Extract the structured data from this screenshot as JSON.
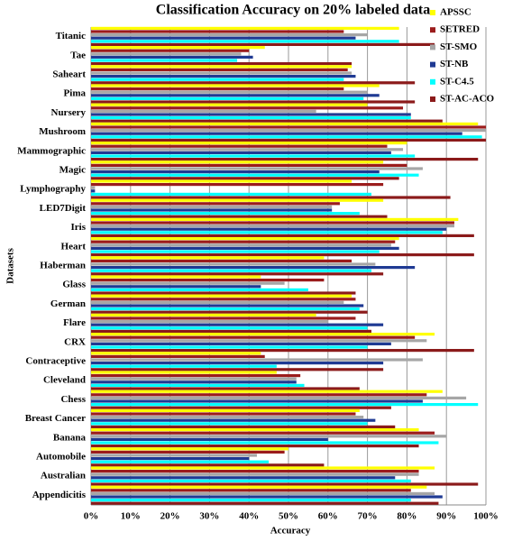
{
  "chart_data": {
    "type": "bar",
    "orientation": "horizontal",
    "title": "Classification Accuracy on 20% labeled data",
    "x_label": "Accuracy",
    "y_label": "Datasets",
    "categories": [
      "Titanic",
      "Tae",
      "Saheart",
      "Pima",
      "Nursery",
      "Mushroom",
      "Mammographic",
      "Magic",
      "Lymphography",
      "LED7Digit",
      "Iris",
      "Heart",
      "Haberman",
      "Glass",
      "German",
      "Flare",
      "CRX",
      "Contraceptive",
      "Cleveland",
      "Chess",
      "Breast Cancer",
      "Banana",
      "Automobile",
      "Australian",
      "Appendicitis"
    ],
    "series": [
      {
        "name": "APSSC",
        "color": "#ffff00",
        "values": [
          78,
          44,
          66,
          73,
          70,
          98,
          80,
          74,
          66,
          74,
          93,
          78,
          59,
          43,
          66,
          57,
          87,
          43,
          47,
          89,
          68,
          83,
          50,
          87,
          85
        ]
      },
      {
        "name": "SETRED",
        "color": "#9b1c1c",
        "values": [
          64,
          40,
          65,
          64,
          79,
          100,
          75,
          80,
          74,
          63,
          92,
          77,
          66,
          59,
          67,
          67,
          82,
          44,
          53,
          85,
          67,
          87,
          49,
          83,
          81
        ]
      },
      {
        "name": "ST-SMO",
        "color": "#a6a6a6",
        "values": [
          70,
          38,
          66,
          70,
          57,
          100,
          79,
          84,
          1,
          61,
          92,
          76,
          72,
          49,
          64,
          60,
          85,
          84,
          52,
          95,
          69,
          90,
          42,
          83,
          87
        ]
      },
      {
        "name": "ST-NB",
        "color": "#1f3a93",
        "values": [
          67,
          41,
          67,
          73,
          81,
          94,
          76,
          73,
          1,
          61,
          90,
          78,
          82,
          43,
          69,
          74,
          76,
          74,
          52,
          84,
          72,
          60,
          40,
          77,
          89
        ]
      },
      {
        "name": "ST-C4.5",
        "color": "#00ffff",
        "values": [
          78,
          37,
          64,
          69,
          81,
          99,
          82,
          83,
          71,
          68,
          89,
          73,
          71,
          55,
          68,
          70,
          70,
          47,
          54,
          98,
          70,
          88,
          45,
          81,
          81
        ]
      },
      {
        "name": "ST-AC-ACO",
        "color": "#8b1a1a",
        "values": [
          87,
          66,
          82,
          82,
          89,
          100,
          98,
          78,
          91,
          75,
          97,
          97,
          74,
          67,
          70,
          71,
          97,
          74,
          68,
          76,
          77,
          83,
          59,
          98,
          88
        ]
      }
    ],
    "xlim": [
      0,
      100
    ],
    "xticks": [
      {
        "value": 0,
        "label": "0%"
      },
      {
        "value": 10,
        "label": "10%"
      },
      {
        "value": 20,
        "label": "20%"
      },
      {
        "value": 30,
        "label": "30%"
      },
      {
        "value": 40,
        "label": "40%"
      },
      {
        "value": 50,
        "label": "50%"
      },
      {
        "value": 60,
        "label": "60%"
      },
      {
        "value": 70,
        "label": "70%"
      },
      {
        "value": 80,
        "label": "80%"
      },
      {
        "value": 90,
        "label": "90%"
      },
      {
        "value": 100,
        "label": "100%"
      }
    ],
    "grid": true
  }
}
